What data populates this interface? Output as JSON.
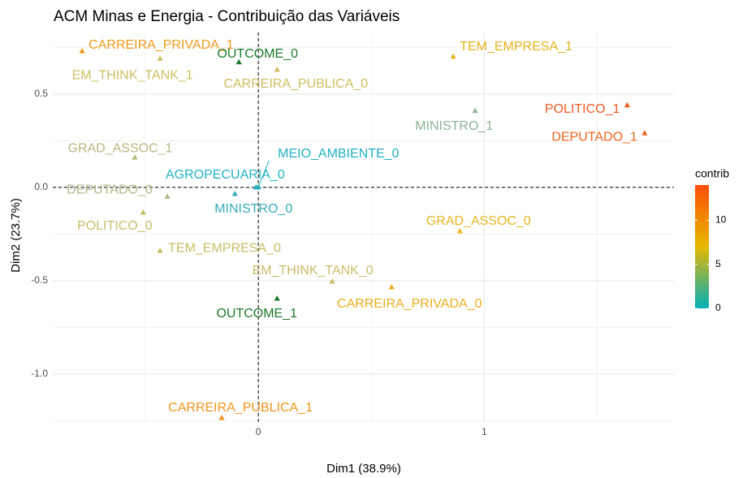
{
  "chart_data": {
    "type": "scatter",
    "title": "ACM Minas e Energia - Contribuição das Variáveis",
    "xlabel": "Dim1 (38.9%)",
    "ylabel": "Dim2 (23.7%)",
    "xlim": [
      -0.91,
      1.84
    ],
    "ylim": [
      -1.257,
      0.83
    ],
    "xticks": [
      0,
      1
    ],
    "yticks": [
      0.5,
      {
        "value": 0,
        "label": "0.0"
      },
      -0.5,
      {
        "value": -1,
        "label": "-1.0"
      }
    ],
    "grid": true,
    "points": [
      {
        "name": "CARREIRA_PRIVADA_1",
        "x": -0.78,
        "y": 0.73,
        "color": "#EF9A1A"
      },
      {
        "name": "EM_THINK_TANK_1",
        "x": -0.435,
        "y": 0.69,
        "color": "#CDBE5C"
      },
      {
        "name": "OUTCOME_0",
        "x": -0.086,
        "y": 0.67,
        "color": "#1B7A2A"
      },
      {
        "name": "CARREIRA_PUBLICA_0",
        "x": 0.083,
        "y": 0.63,
        "color": "#CDBE5C"
      },
      {
        "name": "TEM_EMPRESA_1",
        "x": 0.863,
        "y": 0.7,
        "color": "#E4B41C"
      },
      {
        "name": "MINISTRO_1",
        "x": 0.96,
        "y": 0.41,
        "color": "#8DB392"
      },
      {
        "name": "POLITICO_1",
        "x": 1.633,
        "y": 0.44,
        "color": "#F05A22"
      },
      {
        "name": "DEPUTADO_1",
        "x": 1.71,
        "y": 0.29,
        "color": "#F0661E"
      },
      {
        "name": "GRAD_ASSOC_1",
        "x": -0.547,
        "y": 0.16,
        "color": "#B8B881"
      },
      {
        "name": "MEIO_AMBIENTE_0",
        "x": 0.0,
        "y": 0.0,
        "color": "#22B1C2"
      },
      {
        "name": "AGROPECUARIA_0",
        "x": -0.01,
        "y": 0.0,
        "color": "#22B1C2"
      },
      {
        "name": "DEPUTADO_0",
        "x": -0.403,
        "y": -0.05,
        "color": "#B0B98A"
      },
      {
        "name": "POLITICO_0",
        "x": -0.51,
        "y": -0.135,
        "color": "#C7BC68"
      },
      {
        "name": "MINISTRO_0",
        "x": -0.104,
        "y": -0.035,
        "color": "#34ADB8"
      },
      {
        "name": "GRAD_ASSOC_0",
        "x": 0.892,
        "y": -0.235,
        "color": "#E6B520"
      },
      {
        "name": "TEM_EMPRESA_0",
        "x": -0.435,
        "y": -0.34,
        "color": "#C9BD64"
      },
      {
        "name": "EM_THINK_TANK_0",
        "x": 0.327,
        "y": -0.504,
        "color": "#C9BD64"
      },
      {
        "name": "CARREIRA_PRIVADA_0",
        "x": 0.59,
        "y": -0.535,
        "color": "#EBAE1C"
      },
      {
        "name": "OUTCOME_1",
        "x": 0.083,
        "y": -0.596,
        "color": "#1B7A2A"
      },
      {
        "name": "CARREIRA_PUBLICA_1",
        "x": -0.162,
        "y": -1.235,
        "color": "#F0941C"
      }
    ],
    "colorbar": {
      "title": "contrib",
      "lim": [
        0,
        14
      ],
      "ticks": [
        0,
        5,
        10
      ],
      "colors": [
        "#00AFBB",
        "#E7B800",
        "#FC4E07"
      ]
    }
  }
}
